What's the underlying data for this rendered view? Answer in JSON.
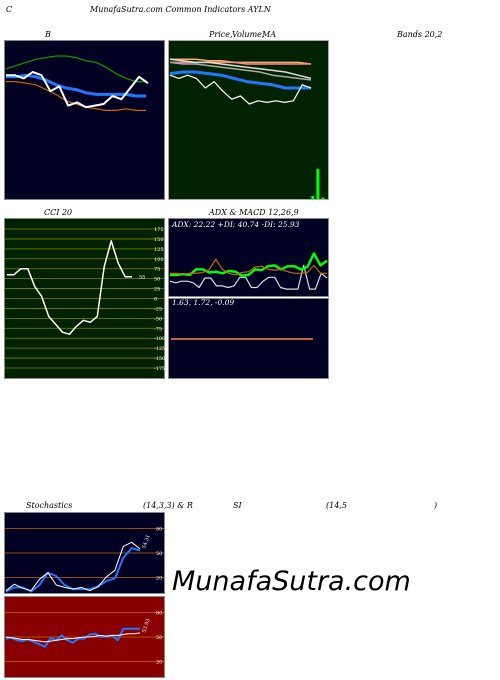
{
  "header": {
    "c_label": "C",
    "title": "MunafaSutra.com Common Indicators AYLN",
    "b_label": "B",
    "price_label": "Price,",
    "volume_label": "Volume,",
    "ma_label": "MA",
    "bands_label": "Bands 20,2",
    "cci_label": "CCI 20",
    "adx_macd_label": "ADX  & MACD 12,26,9",
    "stoch_label": "Stochastics",
    "stoch_params": "(14,3,3) & R",
    "si_label": "SI",
    "rsi_params": "(14,5",
    "rsi_close": ")"
  },
  "watermark": "MunafaSutra.com",
  "chart_data": [
    {
      "id": "bollinger",
      "type": "line",
      "title": "B",
      "background": "#000022",
      "series": [
        {
          "role": "upper-band",
          "color": "#00a000",
          "values": [
            82,
            84,
            86,
            88,
            89,
            90,
            90,
            89,
            87,
            86,
            83,
            79,
            76,
            74,
            74
          ]
        },
        {
          "role": "middle-band",
          "color": "#2277ff",
          "values": [
            77,
            77,
            78,
            77,
            75,
            72,
            70,
            69,
            67,
            66,
            66,
            66,
            66,
            65,
            65
          ]
        },
        {
          "role": "lower-band",
          "color": "#cc6600",
          "values": [
            74,
            74,
            73,
            72,
            69,
            66,
            62,
            60,
            58,
            57,
            56,
            56,
            57,
            56,
            56
          ]
        },
        {
          "role": "price",
          "color": "#ffffff",
          "values": [
            78,
            78,
            76,
            80,
            78,
            68,
            71,
            59,
            61,
            58,
            59,
            60,
            65,
            63,
            70,
            77,
            73
          ]
        }
      ]
    },
    {
      "id": "price-volume-ma",
      "type": "line",
      "background": "#002200",
      "series": [
        {
          "role": "ma-1",
          "color": "#ffaa66",
          "values": [
            88,
            88,
            88,
            87,
            87,
            86,
            86,
            86,
            86,
            86,
            86,
            85
          ]
        },
        {
          "role": "ma-2",
          "color": "#ff8888",
          "values": [
            86,
            86,
            86,
            86,
            86,
            86,
            85,
            85,
            85,
            85,
            85,
            85
          ]
        },
        {
          "role": "ma-3",
          "color": "#dddddd",
          "values": [
            88,
            87,
            86,
            86,
            85,
            84,
            83,
            82,
            81,
            80,
            78,
            76
          ]
        },
        {
          "role": "ma-4",
          "color": "#aaaaaa",
          "values": [
            86,
            85,
            85,
            84,
            83,
            82,
            81,
            80,
            78,
            77,
            76,
            75
          ]
        },
        {
          "role": "ma-5",
          "color": "#2277ff",
          "values": [
            79,
            80,
            80,
            79,
            78,
            76,
            74,
            73,
            72,
            70,
            70,
            70
          ]
        },
        {
          "role": "price",
          "color": "#ffffff",
          "values": [
            78,
            76,
            78,
            76,
            70,
            74,
            68,
            63,
            65,
            60,
            62,
            61,
            62,
            61,
            62,
            72,
            70
          ]
        },
        {
          "role": "volume",
          "color": "#00ff00",
          "values": [
            0,
            0,
            0,
            0,
            0,
            0,
            0,
            0,
            0,
            0,
            0,
            0,
            0,
            0,
            0,
            0,
            0,
            0,
            0,
            0,
            0,
            0,
            0,
            0,
            0,
            0,
            0,
            0,
            10,
            100,
            5
          ]
        }
      ]
    },
    {
      "id": "cci",
      "type": "line",
      "title": "CCI 20",
      "background": "#002200",
      "ylim": [
        -175,
        175
      ],
      "yticks": [
        175,
        150,
        125,
        100,
        75,
        50,
        25,
        0,
        -25,
        -50,
        -75,
        -100,
        -125,
        -150,
        -175
      ],
      "ytick_labels": [
        "175",
        "150",
        "125",
        "100",
        "75",
        "50",
        "25",
        "0",
        "-25",
        "-50",
        "-75",
        "-100",
        "-125",
        "-150",
        "-175"
      ],
      "value_label": "55",
      "values": [
        60,
        60,
        75,
        75,
        30,
        5,
        -45,
        -65,
        -85,
        -90,
        -70,
        -55,
        -60,
        -45,
        80,
        145,
        90,
        55,
        55
      ]
    },
    {
      "id": "adx",
      "type": "line",
      "title": "ADX: 22.22  +DI: 40.74  -DI: 25.93",
      "background": "#000022",
      "series": [
        {
          "role": "adx",
          "color": "#dddddd",
          "values": [
            20,
            18,
            20,
            20,
            18,
            12,
            24,
            24,
            14,
            14,
            12,
            14,
            25,
            25,
            12,
            12,
            20,
            25,
            25,
            12,
            10,
            10,
            10,
            40,
            10,
            10,
            30,
            24
          ]
        },
        {
          "role": "plus-di",
          "color": "#00ff00",
          "values": [
            28,
            28,
            29,
            28,
            35,
            35,
            31,
            32,
            30,
            33,
            32,
            27,
            28,
            35,
            34,
            39,
            40,
            35,
            39,
            39,
            35,
            38,
            55,
            40,
            46
          ]
        },
        {
          "role": "minus-di",
          "color": "#cc6600",
          "values": [
            30,
            30,
            29,
            30,
            30,
            31,
            35,
            48,
            35,
            30,
            28,
            31,
            32,
            38,
            39,
            35,
            34,
            35,
            32,
            30,
            30,
            31,
            40,
            30,
            30
          ]
        }
      ]
    },
    {
      "id": "macd",
      "type": "line",
      "title": "1.63,  1.72,  -0.09",
      "background": "#000022",
      "series": [
        {
          "role": "macd",
          "color": "#dddddd",
          "values": [
            0,
            0,
            0,
            0,
            0,
            0,
            0,
            0,
            0,
            0,
            0,
            0,
            0,
            0,
            0
          ]
        },
        {
          "role": "signal",
          "color": "#ff3333",
          "values": [
            0,
            0,
            0,
            0,
            0,
            0,
            0,
            0,
            0,
            0,
            0,
            0,
            0,
            0,
            0
          ]
        },
        {
          "role": "histogram",
          "color": "#ffaa66",
          "values": [
            0,
            0,
            0,
            0,
            0,
            0,
            0,
            0,
            0,
            0,
            0,
            0,
            0,
            0,
            0
          ]
        }
      ]
    },
    {
      "id": "stochastics",
      "type": "line",
      "title": "Stochastics",
      "background": "#000022",
      "ylim": [
        0,
        100
      ],
      "yticks": [
        80,
        50,
        20
      ],
      "ytick_labels": [
        "80",
        "50",
        "20"
      ],
      "value_label": "54.31",
      "series": [
        {
          "role": "slow-d",
          "color": "#2277ff",
          "values": [
            3,
            8,
            8,
            3,
            11,
            26,
            22,
            11,
            6,
            6,
            6,
            9,
            16,
            19,
            44,
            56,
            53
          ]
        },
        {
          "role": "fast-k",
          "color": "#ffffff",
          "values": [
            4,
            12,
            7,
            4,
            18,
            26,
            11,
            8,
            6,
            8,
            4,
            9,
            21,
            29,
            58,
            63,
            55
          ]
        }
      ]
    },
    {
      "id": "rsi",
      "type": "line",
      "background": "#880000",
      "ylim": [
        0,
        100
      ],
      "yticks": [
        80,
        50,
        20
      ],
      "ytick_labels": [
        "80",
        "50",
        "20"
      ],
      "value_label": "53.93",
      "series": [
        {
          "role": "rsi",
          "color": "#2277ff",
          "values": [
            48,
            49,
            46,
            45,
            47,
            44,
            41,
            38,
            49,
            46,
            52,
            46,
            43,
            48,
            48,
            53,
            54,
            50,
            51,
            52,
            46,
            60,
            60,
            60,
            60
          ]
        },
        {
          "role": "rsi-ma",
          "color": "#ffffff",
          "values": [
            50,
            49,
            48,
            47,
            47,
            46,
            45,
            44,
            45,
            46,
            47,
            48,
            48,
            49,
            50,
            50,
            51,
            52,
            51,
            52,
            52,
            53,
            54,
            54,
            55
          ]
        }
      ]
    }
  ]
}
